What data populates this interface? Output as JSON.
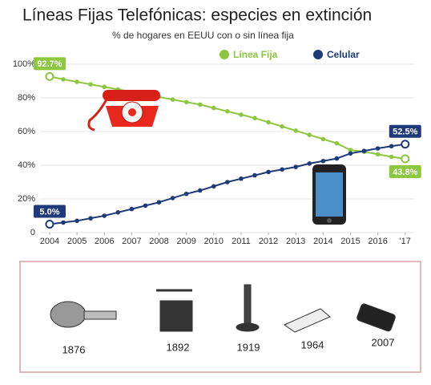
{
  "chart_data": {
    "type": "line",
    "title": "Líneas Fijas Telefónicas: especies en extinción",
    "subtitle": "% de hogares en EEUU con o sin línea fija",
    "x": [
      2004,
      2004.5,
      2005,
      2005.5,
      2006,
      2006.5,
      2007,
      2007.5,
      2008,
      2008.5,
      2009,
      2009.5,
      2010,
      2010.5,
      2011,
      2011.5,
      2012,
      2012.5,
      2013,
      2013.5,
      2014,
      2014.5,
      2015,
      2015.5,
      2016,
      2016.5,
      2017
    ],
    "series": [
      {
        "name": "Línea Fija",
        "color": "#8dc63f",
        "values": [
          92.7,
          91,
          89.5,
          88,
          86.5,
          85,
          83.5,
          82,
          80.5,
          79,
          77.5,
          76,
          74,
          72,
          70,
          68,
          65.5,
          63,
          60.5,
          58,
          55.5,
          53,
          49,
          48,
          46.5,
          45,
          43.8
        ],
        "value_labels": [
          "92.7%",
          null,
          null,
          null,
          null,
          null,
          null,
          null,
          null,
          null,
          null,
          null,
          null,
          null,
          null,
          null,
          null,
          null,
          null,
          null,
          null,
          null,
          null,
          null,
          null,
          null,
          "43.8%"
        ]
      },
      {
        "name": "Celular",
        "color": "#1f3a7a",
        "values": [
          5.0,
          6,
          7,
          8.5,
          10,
          12,
          14,
          16,
          18,
          20.5,
          23,
          25,
          27.5,
          30,
          32,
          34,
          36,
          37.5,
          39,
          41,
          42.5,
          44,
          47,
          48.5,
          50,
          51.3,
          52.5
        ],
        "value_labels": [
          "5.0%",
          null,
          null,
          null,
          null,
          null,
          null,
          null,
          null,
          null,
          null,
          null,
          null,
          null,
          null,
          null,
          null,
          null,
          null,
          null,
          null,
          null,
          null,
          null,
          null,
          null,
          "52.5%"
        ]
      }
    ],
    "xlim": [
      2003.65,
      2017.3
    ],
    "xticks": [
      2004,
      2005,
      2006,
      2007,
      2008,
      2009,
      2010,
      2011,
      2012,
      2013,
      2014,
      2015,
      2016,
      {
        "value": 2017,
        "label": "'17"
      }
    ],
    "ylim": [
      0,
      100
    ],
    "yticks": [
      0,
      {
        "value": 20,
        "label": "20%"
      },
      {
        "value": 40,
        "label": "40%"
      },
      {
        "value": 60,
        "label": "60%"
      },
      {
        "value": 80,
        "label": "80%"
      },
      {
        "value": 100,
        "label": "100%"
      }
    ],
    "grid": true
  },
  "timeline": [
    "1876",
    "1892",
    "1919",
    "1964",
    "2007"
  ]
}
